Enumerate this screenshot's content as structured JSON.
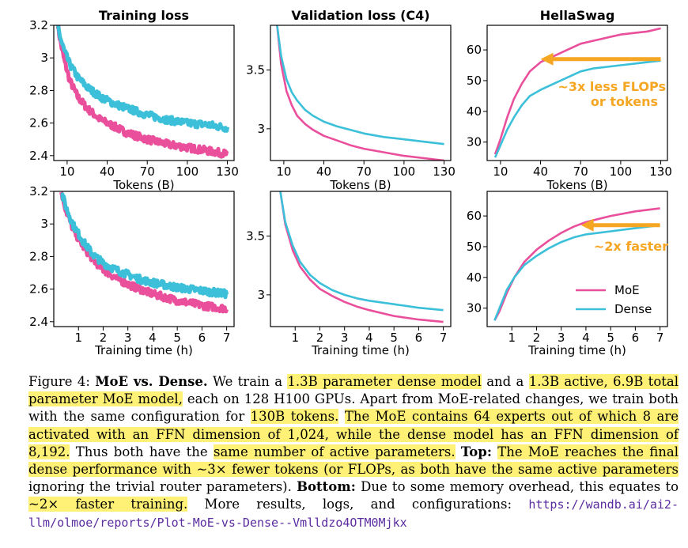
{
  "colors": {
    "moe": "#ea4f9c",
    "dense": "#3cc0d9",
    "arrow": "#f5a623",
    "highlight": "#fff176",
    "link": "#5a2ca0"
  },
  "legend": {
    "moe": "MoE",
    "dense": "Dense"
  },
  "chart_data": [
    {
      "id": "train_loss_tokens",
      "type": "line",
      "title": "Training loss",
      "xlabel": "Tokens (B)",
      "ylabel": "",
      "xlim": [
        0,
        135
      ],
      "ylim": [
        2.37,
        3.2
      ],
      "xticks": [
        10,
        40,
        70,
        100,
        130
      ],
      "yticks": [
        2.4,
        2.6,
        2.8,
        3.0,
        3.2
      ],
      "noisy": true,
      "series": [
        {
          "name": "MoE",
          "x": [
            3,
            5,
            8,
            12,
            18,
            25,
            35,
            45,
            55,
            70,
            85,
            100,
            115,
            130
          ],
          "y": [
            3.2,
            3.1,
            2.98,
            2.86,
            2.76,
            2.69,
            2.62,
            2.58,
            2.54,
            2.5,
            2.47,
            2.45,
            2.43,
            2.41
          ]
        },
        {
          "name": "Dense",
          "x": [
            3,
            5,
            8,
            12,
            18,
            25,
            35,
            45,
            55,
            70,
            85,
            100,
            115,
            130
          ],
          "y": [
            3.2,
            3.12,
            3.04,
            2.96,
            2.88,
            2.82,
            2.76,
            2.72,
            2.69,
            2.65,
            2.62,
            2.6,
            2.59,
            2.57
          ]
        }
      ]
    },
    {
      "id": "val_loss_tokens",
      "type": "line",
      "title": "Validation loss (C4)",
      "xlabel": "Tokens (B)",
      "ylabel": "",
      "xlim": [
        0,
        135
      ],
      "ylim": [
        2.73,
        3.88
      ],
      "xticks": [
        10,
        40,
        70,
        100,
        130
      ],
      "yticks": [
        3.0,
        3.5
      ],
      "series": [
        {
          "name": "MoE",
          "x": [
            5,
            8,
            12,
            16,
            20,
            26,
            32,
            40,
            50,
            60,
            70,
            85,
            100,
            115,
            130
          ],
          "y": [
            3.88,
            3.55,
            3.32,
            3.2,
            3.11,
            3.04,
            2.99,
            2.94,
            2.9,
            2.86,
            2.83,
            2.8,
            2.77,
            2.75,
            2.73
          ]
        },
        {
          "name": "Dense",
          "x": [
            5,
            8,
            12,
            16,
            20,
            26,
            32,
            40,
            50,
            60,
            70,
            85,
            100,
            115,
            130
          ],
          "y": [
            3.88,
            3.62,
            3.42,
            3.31,
            3.24,
            3.16,
            3.11,
            3.06,
            3.02,
            2.99,
            2.96,
            2.93,
            2.91,
            2.89,
            2.87
          ]
        }
      ]
    },
    {
      "id": "hellaswag_tokens",
      "type": "line",
      "title": "HellaSwag",
      "xlabel": "Tokens (B)",
      "ylabel": "",
      "xlim": [
        0,
        135
      ],
      "ylim": [
        24,
        68
      ],
      "xticks": [
        10,
        40,
        70,
        100,
        130
      ],
      "yticks": [
        30,
        40,
        50,
        60
      ],
      "series": [
        {
          "name": "MoE",
          "x": [
            6,
            10,
            15,
            20,
            26,
            32,
            40,
            50,
            60,
            70,
            80,
            90,
            100,
            110,
            120,
            130
          ],
          "y": [
            26,
            31,
            38,
            44,
            49,
            53,
            56,
            58,
            60,
            62,
            63,
            64,
            65,
            65.5,
            66,
            67
          ]
        },
        {
          "name": "Dense",
          "x": [
            6,
            10,
            15,
            20,
            26,
            32,
            40,
            50,
            60,
            70,
            80,
            90,
            100,
            110,
            120,
            130
          ],
          "y": [
            25,
            29,
            34,
            38,
            42,
            45,
            47,
            49,
            51,
            53,
            54,
            54.5,
            55,
            55.5,
            56,
            56.5
          ]
        }
      ],
      "annotation": {
        "text_lines": [
          "~3x less FLOPs",
          "or tokens"
        ],
        "arrow_from_x": 130,
        "arrow_to_x": 40,
        "arrow_y": 57
      }
    },
    {
      "id": "train_loss_time",
      "type": "line",
      "title": "",
      "xlabel": "Training time (h)",
      "ylabel": "",
      "xlim": [
        0,
        7.3
      ],
      "ylim": [
        2.37,
        3.2
      ],
      "xticks": [
        1,
        2,
        3,
        4,
        5,
        6,
        7
      ],
      "yticks": [
        2.4,
        2.6,
        2.8,
        3.0,
        3.2
      ],
      "noisy": true,
      "series": [
        {
          "name": "MoE",
          "x": [
            0.3,
            0.5,
            0.8,
            1.2,
            1.6,
            2.0,
            2.5,
            3.0,
            3.5,
            4.0,
            5.0,
            6.0,
            7.0
          ],
          "y": [
            3.2,
            3.08,
            2.96,
            2.86,
            2.78,
            2.72,
            2.67,
            2.63,
            2.6,
            2.57,
            2.53,
            2.5,
            2.48
          ]
        },
        {
          "name": "Dense",
          "x": [
            0.3,
            0.5,
            0.8,
            1.2,
            1.6,
            2.0,
            2.5,
            3.0,
            3.5,
            4.0,
            5.0,
            6.0,
            7.0
          ],
          "y": [
            3.2,
            3.1,
            2.99,
            2.89,
            2.81,
            2.76,
            2.72,
            2.69,
            2.66,
            2.64,
            2.61,
            2.59,
            2.57
          ]
        }
      ]
    },
    {
      "id": "val_loss_time",
      "type": "line",
      "title": "",
      "xlabel": "Training time (h)",
      "ylabel": "",
      "xlim": [
        0,
        7.3
      ],
      "ylim": [
        2.73,
        3.88
      ],
      "xticks": [
        1,
        2,
        3,
        4,
        5,
        6,
        7
      ],
      "yticks": [
        3.0,
        3.5
      ],
      "series": [
        {
          "name": "MoE",
          "x": [
            0.4,
            0.6,
            0.9,
            1.2,
            1.6,
            2.0,
            2.5,
            3.0,
            3.5,
            4.0,
            5.0,
            6.0,
            7.0
          ],
          "y": [
            3.88,
            3.6,
            3.38,
            3.24,
            3.13,
            3.05,
            2.99,
            2.94,
            2.9,
            2.87,
            2.82,
            2.79,
            2.77
          ]
        },
        {
          "name": "Dense",
          "x": [
            0.4,
            0.6,
            0.9,
            1.2,
            1.6,
            2.0,
            2.5,
            3.0,
            3.5,
            4.0,
            5.0,
            6.0,
            7.0
          ],
          "y": [
            3.88,
            3.62,
            3.42,
            3.28,
            3.17,
            3.1,
            3.04,
            3.0,
            2.97,
            2.95,
            2.92,
            2.89,
            2.87
          ]
        }
      ]
    },
    {
      "id": "hellaswag_time",
      "type": "line",
      "title": "",
      "xlabel": "Training time (h)",
      "ylabel": "",
      "xlim": [
        0,
        7.3
      ],
      "ylim": [
        24,
        68
      ],
      "xticks": [
        1,
        2,
        3,
        4,
        5,
        6,
        7
      ],
      "yticks": [
        30,
        40,
        50,
        60
      ],
      "series": [
        {
          "name": "MoE",
          "x": [
            0.3,
            0.5,
            0.8,
            1.1,
            1.5,
            2.0,
            2.5,
            3.0,
            3.5,
            4.0,
            5.0,
            6.0,
            7.0
          ],
          "y": [
            26,
            29,
            35,
            40,
            45,
            49,
            52,
            54.5,
            56.5,
            58,
            60,
            61.5,
            62.5
          ]
        },
        {
          "name": "Dense",
          "x": [
            0.3,
            0.5,
            0.8,
            1.1,
            1.5,
            2.0,
            2.5,
            3.0,
            3.5,
            4.0,
            5.0,
            6.0,
            7.0
          ],
          "y": [
            26,
            30,
            36,
            40,
            44,
            47,
            49.5,
            51.5,
            53,
            54,
            55,
            56,
            57
          ]
        }
      ],
      "annotation": {
        "text_lines": [
          "~2x faster"
        ],
        "arrow_from_x": 7.0,
        "arrow_to_x": 3.8,
        "arrow_y": 57
      },
      "legend": true
    }
  ],
  "caption": {
    "label": "Figure 4:",
    "title": "MoE vs. Dense.",
    "t1": "We train a",
    "h1": "1.3B parameter dense model",
    "t2": "and a",
    "h2": "1.3B active, 6.9B total parameter MoE model,",
    "t3": "each on 128 H100 GPUs. Apart from MoE-related changes, we train both with the same configuration for",
    "h3": "130B tokens.",
    "h4": "The MoE contains 64 experts out of which 8 are activated with an FFN dimension of 1,024, while the dense model has an FFN dimension of 8,192.",
    "t4": "Thus both have the",
    "h5": "same number of active parameters.",
    "top": "Top:",
    "h6": "The MoE reaches the final dense performance with ~3× fewer tokens (or FLOPs, as both have the same active parameters",
    "t5": "ignoring the trivial router parameters).",
    "bottom": "Bottom:",
    "t6": "Due to some memory overhead, this equates to",
    "h7": "~2× faster training.",
    "t7": "More results, logs, and configurations:",
    "link": "https://wandb.ai/ai2-llm/olmoe/reports/Plot-MoE-vs-Dense--Vmlldzo4OTM0Mjkx"
  }
}
